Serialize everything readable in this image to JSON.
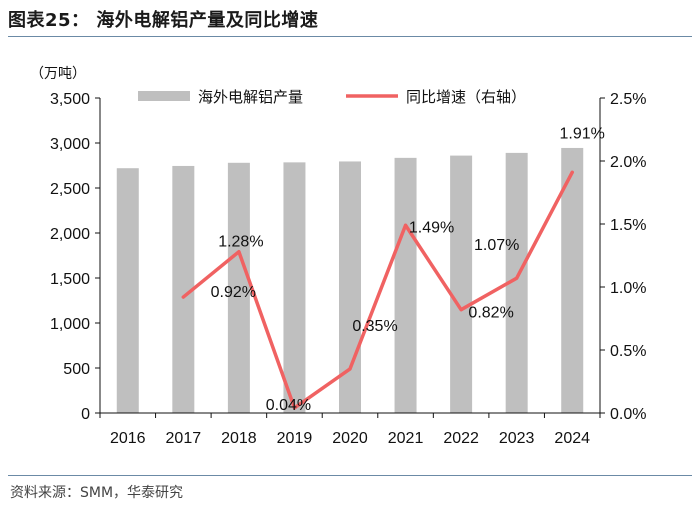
{
  "header": {
    "title": "图表25： 海外电解铝产量及同比增速"
  },
  "footer": {
    "source": "资料来源：SMM，华泰研究"
  },
  "chart_data": {
    "type": "bar+line",
    "categories": [
      "2016",
      "2017",
      "2018",
      "2019",
      "2020",
      "2021",
      "2022",
      "2023",
      "2024"
    ],
    "series": [
      {
        "name": "海外电解铝产量",
        "type": "bar",
        "axis": "left",
        "color": "#bfbfbf",
        "values": [
          2720,
          2745,
          2780,
          2785,
          2795,
          2835,
          2860,
          2890,
          2945
        ]
      },
      {
        "name": "同比增速（右轴）",
        "type": "line",
        "axis": "right",
        "color": "#f06262",
        "values": [
          null,
          0.92,
          1.28,
          0.04,
          0.35,
          1.49,
          0.82,
          1.07,
          1.91
        ],
        "labels": [
          "",
          "0.92%",
          "1.28%",
          "0.04%",
          "0.35%",
          "1.49%",
          "0.82%",
          "1.07%",
          "1.91%"
        ]
      }
    ],
    "y_left": {
      "unit": "（万吨）",
      "range": [
        0,
        3500
      ],
      "ticks": [
        0,
        500,
        1000,
        1500,
        2000,
        2500,
        3000,
        3500
      ],
      "tick_labels": [
        "0",
        "500",
        "1,000",
        "1,500",
        "2,000",
        "2,500",
        "3,000",
        "3,500"
      ]
    },
    "y_right": {
      "range": [
        0,
        2.5
      ],
      "ticks": [
        0,
        0.5,
        1.0,
        1.5,
        2.0,
        2.5
      ],
      "tick_labels": [
        "0.0%",
        "0.5%",
        "1.0%",
        "1.5%",
        "2.0%",
        "2.5%"
      ]
    },
    "legend": {
      "position": "top",
      "items": [
        "海外电解铝产量",
        "同比增速（右轴）"
      ]
    }
  }
}
